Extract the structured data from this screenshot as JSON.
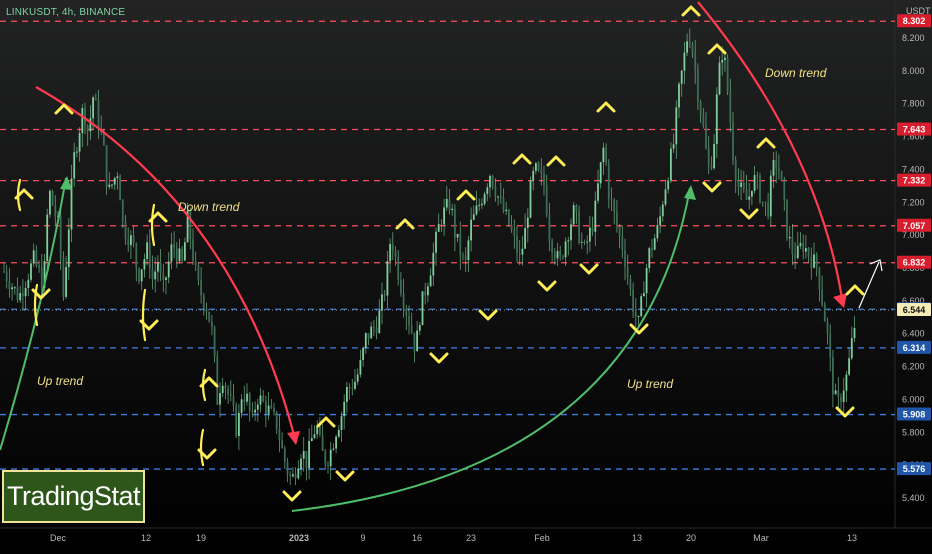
{
  "header": {
    "symbol": "LINKUSDT, 4h, BINANCE"
  },
  "axis": {
    "currency": "USDT"
  },
  "logo": {
    "text": "TradingStat"
  },
  "colors": {
    "background": "#000000",
    "candle": "#7fcf9c",
    "red_level": "#ff4d5e",
    "blue_level": "#3f7ee0",
    "arrow_yellow": "#ffee55",
    "trend_red": "#ff3b4f",
    "trend_green": "#4fbd6a"
  },
  "chart_data": {
    "type": "candlestick",
    "x_ticks": [
      "Dec",
      "12",
      "19",
      "2023",
      "9",
      "16",
      "23",
      "Feb",
      "13",
      "20",
      "Mar",
      "13"
    ],
    "y_ticks": [
      "5.400",
      "5.600",
      "5.800",
      "6.000",
      "6.200",
      "6.400",
      "6.600",
      "6.800",
      "7.000",
      "7.200",
      "7.400",
      "7.600",
      "7.800",
      "8.000",
      "8.200"
    ],
    "ylim": [
      5.2,
      8.3
    ],
    "levels": [
      {
        "value": 8.302,
        "label": "8.302",
        "style": "red"
      },
      {
        "value": 7.643,
        "label": "7.643",
        "style": "red"
      },
      {
        "value": 7.332,
        "label": "7.332",
        "style": "red"
      },
      {
        "value": 7.057,
        "label": "7.057",
        "style": "red"
      },
      {
        "value": 6.832,
        "label": "6.832",
        "style": "red"
      },
      {
        "value": 6.549,
        "label": "6.549",
        "style": "blue"
      },
      {
        "value": 6.544,
        "label": "6.544",
        "style": "current"
      },
      {
        "value": 6.314,
        "label": "6.314",
        "style": "blue"
      },
      {
        "value": 5.908,
        "label": "5.908",
        "style": "blue"
      },
      {
        "value": 5.576,
        "label": "5.576",
        "style": "blue"
      }
    ],
    "annotations": [
      "Down trend",
      "Down trend",
      "Up trend",
      "Up trend"
    ],
    "price_path": [
      [
        0,
        6.78
      ],
      [
        3,
        6.62
      ],
      [
        6,
        6.85
      ],
      [
        8,
        6.7
      ],
      [
        9,
        7.28
      ],
      [
        11,
        7.05
      ],
      [
        12,
        6.62
      ],
      [
        14,
        7.45
      ],
      [
        16,
        7.78
      ],
      [
        17,
        7.62
      ],
      [
        18,
        7.85
      ],
      [
        20,
        7.55
      ],
      [
        21,
        7.25
      ],
      [
        23,
        7.4
      ],
      [
        24,
        7.05
      ],
      [
        26,
        6.95
      ],
      [
        27,
        6.75
      ],
      [
        29,
        6.92
      ],
      [
        30,
        6.72
      ],
      [
        31,
        6.85
      ],
      [
        32,
        6.65
      ],
      [
        34,
        6.95
      ],
      [
        36,
        6.82
      ],
      [
        37,
        7.1
      ],
      [
        39,
        6.7
      ],
      [
        41,
        6.55
      ],
      [
        42,
        6.4
      ],
      [
        43,
        6.0
      ],
      [
        44,
        6.15
      ],
      [
        46,
        5.95
      ],
      [
        47,
        5.8
      ],
      [
        48,
        6.05
      ],
      [
        49,
        6.0
      ],
      [
        50,
        5.85
      ],
      [
        51,
        6.02
      ],
      [
        53,
        5.95
      ],
      [
        55,
        5.85
      ],
      [
        56,
        5.7
      ],
      [
        57,
        5.58
      ],
      [
        58,
        5.5
      ],
      [
        59,
        5.6
      ],
      [
        60,
        5.7
      ],
      [
        61,
        5.62
      ],
      [
        62,
        5.75
      ],
      [
        63,
        5.85
      ],
      [
        64,
        5.68
      ],
      [
        65,
        5.62
      ],
      [
        66,
        5.7
      ],
      [
        67,
        5.82
      ],
      [
        68,
        5.9
      ],
      [
        69,
        6.05
      ],
      [
        71,
        6.12
      ],
      [
        72,
        6.22
      ],
      [
        73,
        6.38
      ],
      [
        75,
        6.45
      ],
      [
        76,
        6.55
      ],
      [
        77,
        6.7
      ],
      [
        78,
        7.0
      ],
      [
        79,
        6.85
      ],
      [
        80,
        6.7
      ],
      [
        81,
        6.55
      ],
      [
        82,
        6.45
      ],
      [
        83,
        6.3
      ],
      [
        84,
        6.55
      ],
      [
        86,
        6.8
      ],
      [
        87,
        6.95
      ],
      [
        88,
        7.1
      ],
      [
        90,
        7.2
      ],
      [
        91,
        7.0
      ],
      [
        93,
        6.8
      ],
      [
        94,
        7.05
      ],
      [
        96,
        7.2
      ],
      [
        98,
        7.38
      ],
      [
        100,
        7.2
      ],
      [
        102,
        7.05
      ],
      [
        104,
        6.85
      ],
      [
        105,
        7.0
      ],
      [
        106,
        7.25
      ],
      [
        107,
        7.4
      ],
      [
        109,
        7.3
      ],
      [
        110,
        7.0
      ],
      [
        112,
        6.82
      ],
      [
        113,
        6.95
      ],
      [
        115,
        7.15
      ],
      [
        116,
        7.0
      ],
      [
        117,
        6.9
      ],
      [
        119,
        7.1
      ],
      [
        120,
        7.35
      ],
      [
        121,
        7.55
      ],
      [
        122,
        7.25
      ],
      [
        124,
        7.0
      ],
      [
        125,
        6.9
      ],
      [
        126,
        6.7
      ],
      [
        127,
        6.55
      ],
      [
        128,
        6.45
      ],
      [
        129,
        6.7
      ],
      [
        130,
        6.88
      ],
      [
        132,
        7.05
      ],
      [
        133,
        7.25
      ],
      [
        134,
        7.4
      ],
      [
        135,
        7.55
      ],
      [
        136,
        7.85
      ],
      [
        137,
        8.05
      ],
      [
        138,
        8.25
      ],
      [
        139,
        8.1
      ],
      [
        140,
        7.85
      ],
      [
        141,
        7.65
      ],
      [
        142,
        7.4
      ],
      [
        143,
        7.5
      ],
      [
        144,
        7.95
      ],
      [
        145,
        8.15
      ],
      [
        146,
        7.85
      ],
      [
        147,
        7.5
      ],
      [
        148,
        7.3
      ],
      [
        150,
        7.2
      ],
      [
        151,
        7.35
      ],
      [
        152,
        7.3
      ],
      [
        153,
        7.2
      ],
      [
        154,
        7.15
      ],
      [
        155,
        7.4
      ],
      [
        156,
        7.45
      ],
      [
        157,
        7.25
      ],
      [
        158,
        7.0
      ],
      [
        159,
        6.9
      ],
      [
        160,
        6.88
      ],
      [
        161,
        6.95
      ],
      [
        162,
        6.9
      ],
      [
        163,
        6.85
      ],
      [
        164,
        6.8
      ],
      [
        165,
        6.6
      ],
      [
        166,
        6.4
      ],
      [
        167,
        6.1
      ],
      [
        168,
        5.95
      ],
      [
        169,
        6.05
      ],
      [
        170,
        6.15
      ],
      [
        171,
        6.35
      ],
      [
        172,
        6.55
      ]
    ],
    "price_x_max": 172
  }
}
